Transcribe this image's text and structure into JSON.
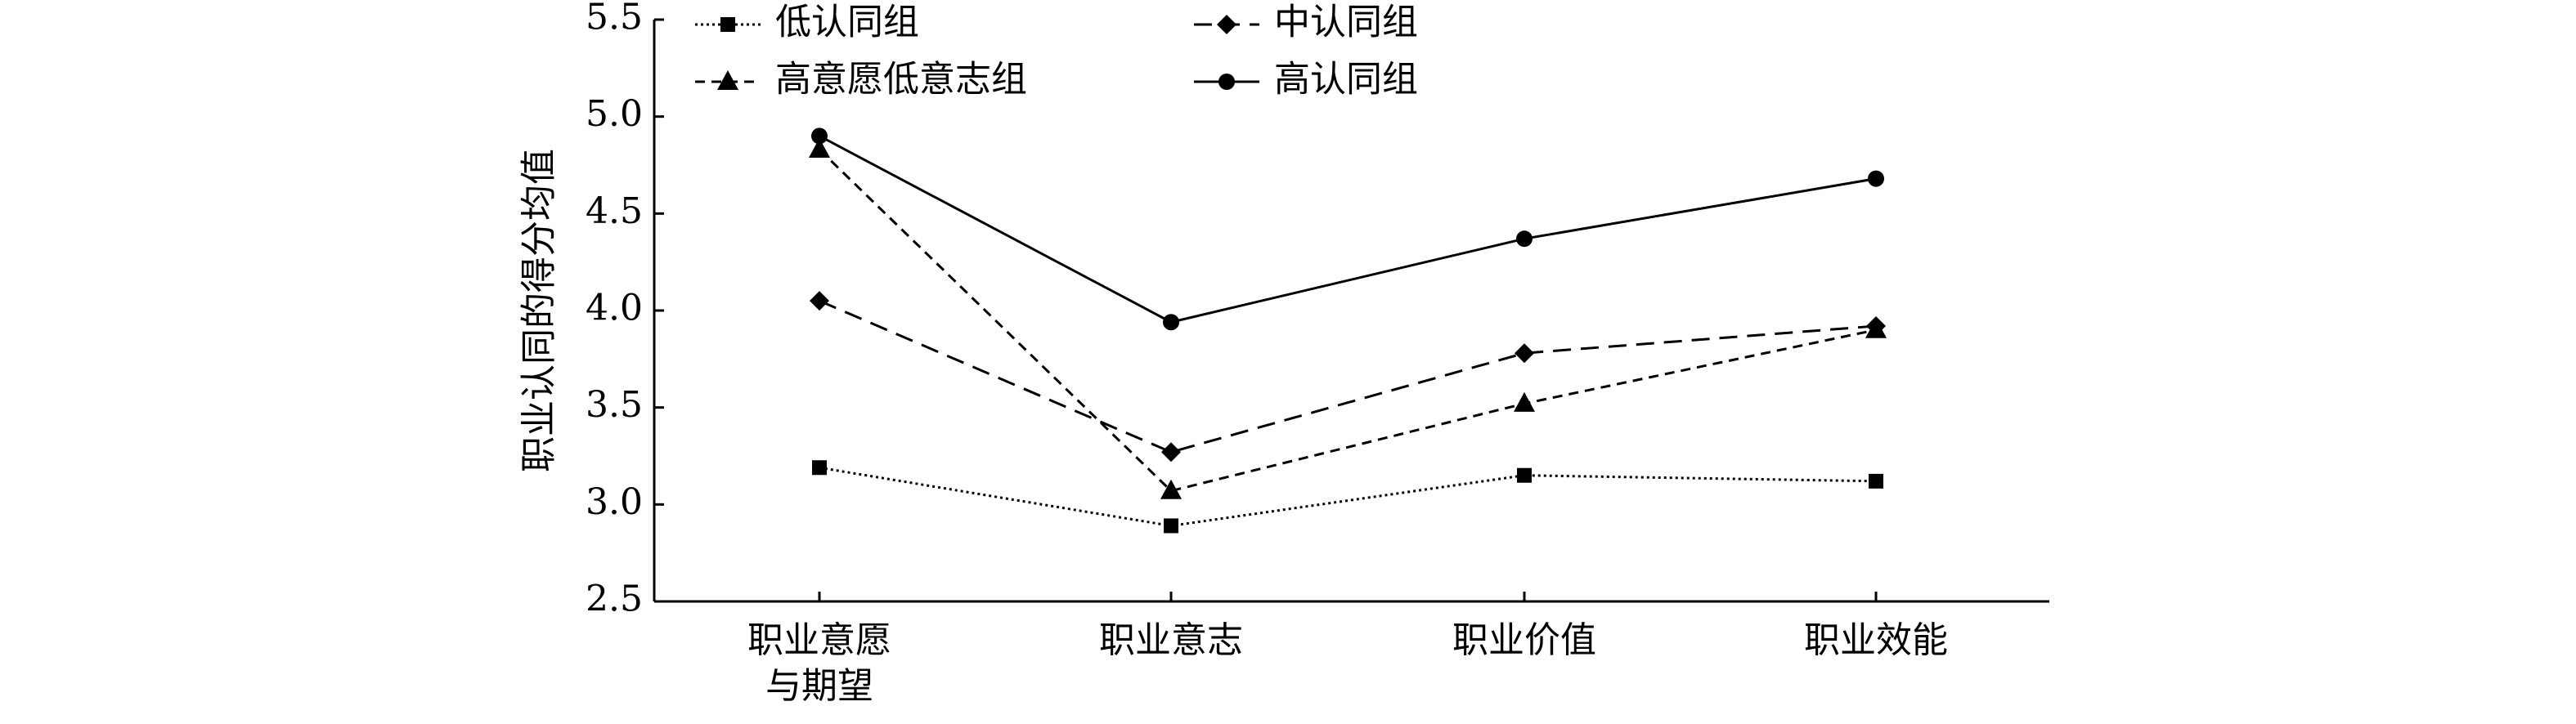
{
  "chart_data": {
    "type": "line",
    "y_label": "职业认同的得分均值",
    "categories": [
      "职业意愿\n与期望",
      "职业意志",
      "职业价值",
      "职业效能"
    ],
    "series": [
      {
        "name": "低认同组",
        "color": "#000000",
        "marker": "square",
        "dash": "dotted",
        "values": [
          3.19,
          2.89,
          3.15,
          3.12
        ]
      },
      {
        "name": "中认同组",
        "color": "#000000",
        "marker": "diamond",
        "dash": "long-dash",
        "values": [
          4.05,
          3.27,
          3.78,
          3.92
        ]
      },
      {
        "name": "高意愿低意志组",
        "color": "#000000",
        "marker": "triangle",
        "dash": "dash",
        "values": [
          4.83,
          3.07,
          3.52,
          3.9
        ]
      },
      {
        "name": "高认同组",
        "color": "#000000",
        "marker": "circle",
        "dash": "solid",
        "values": [
          4.9,
          3.94,
          4.37,
          4.68
        ]
      }
    ],
    "ylim": [
      2.5,
      5.5
    ],
    "yticks": [
      2.5,
      {
        "value": 3,
        "label": "3.0"
      },
      3.5,
      {
        "value": 4,
        "label": "4.0"
      },
      4.5,
      {
        "value": 5,
        "label": "5.0"
      },
      5.5
    ]
  }
}
